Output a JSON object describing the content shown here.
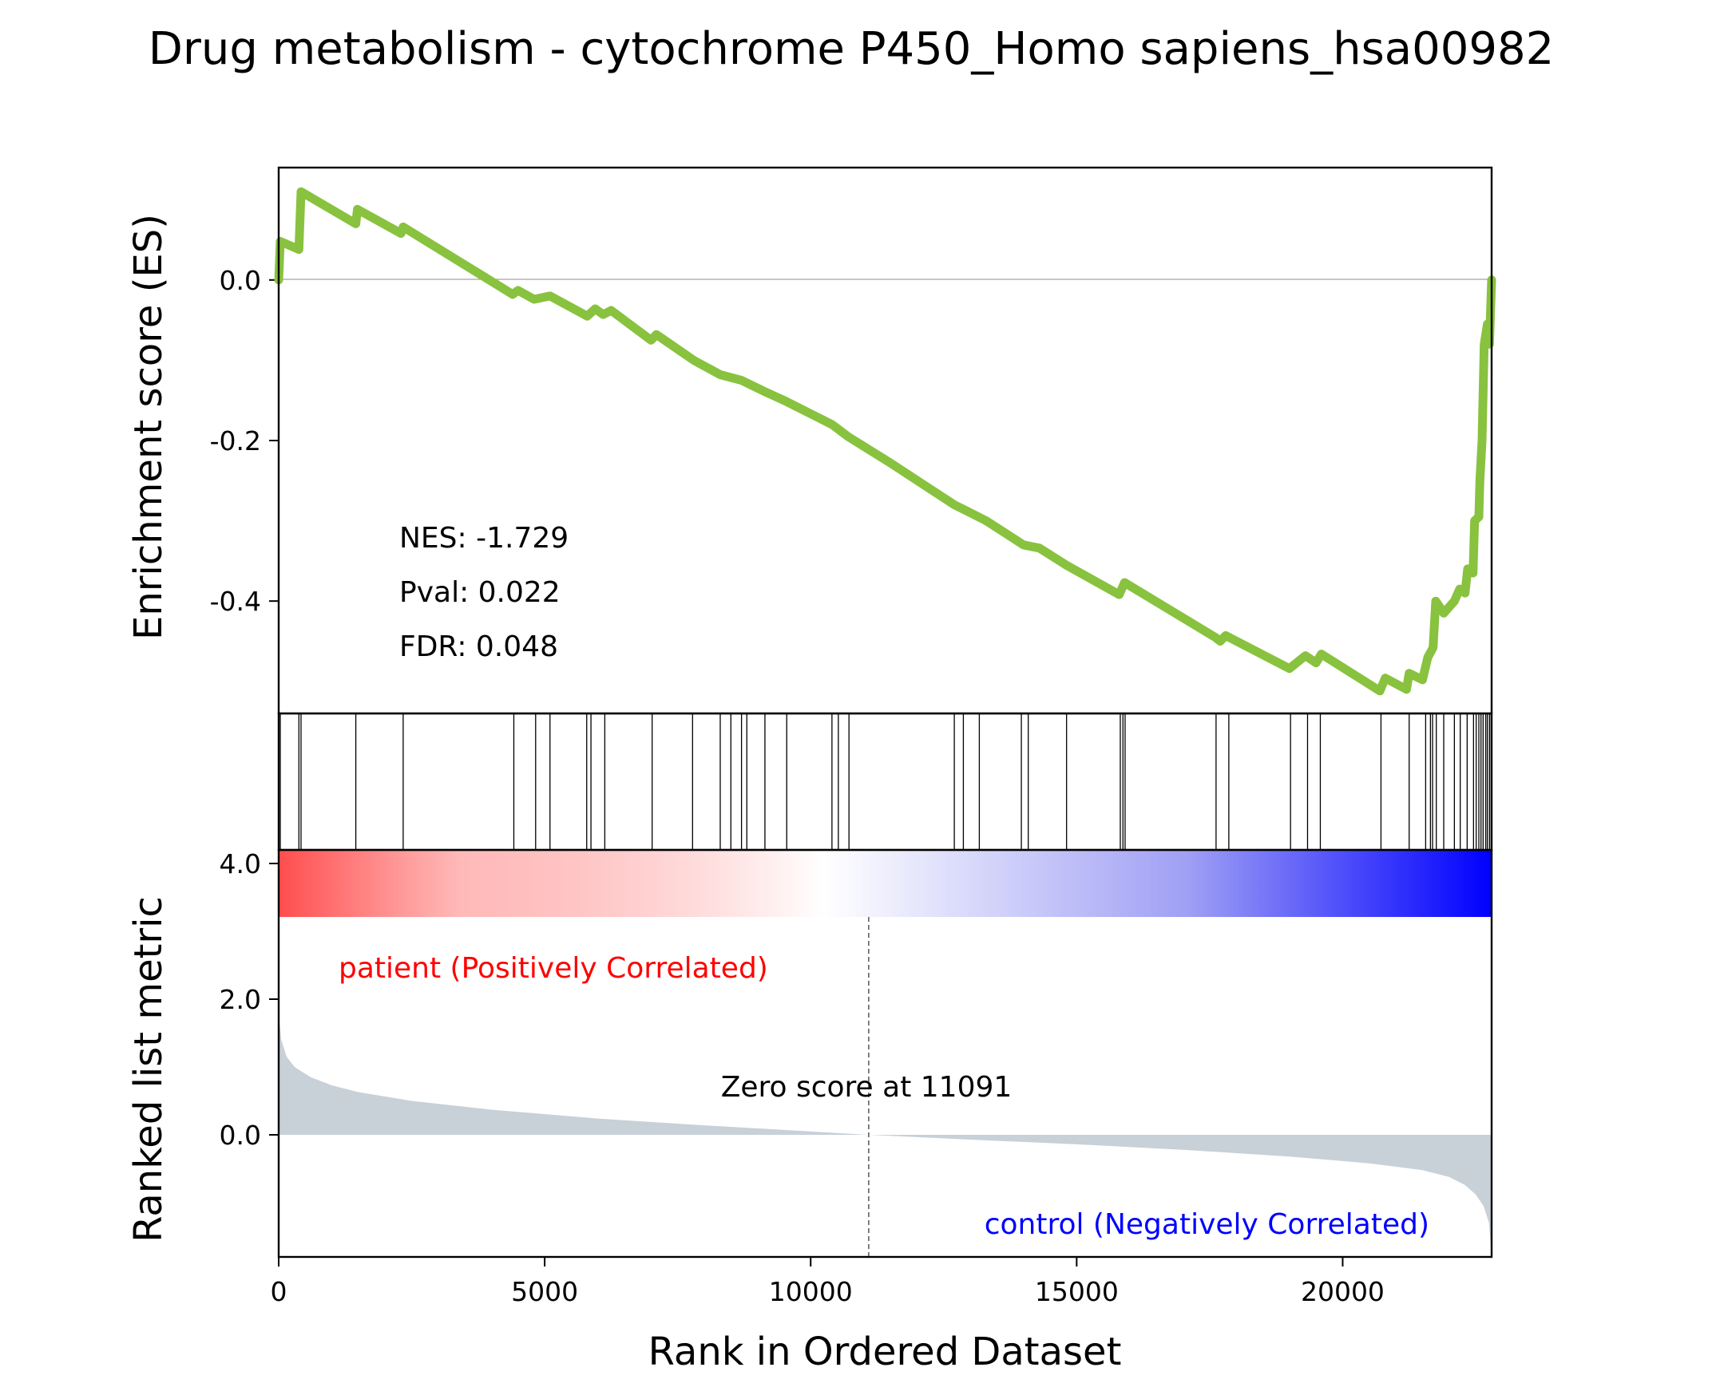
{
  "chart_data": {
    "type": "line",
    "title": "Drug metabolism - cytochrome P450_Homo sapiens_hsa00982",
    "xlabel": "Rank in Ordered Dataset",
    "xlim": [
      0,
      22800
    ],
    "xticks": [
      0,
      5000,
      10000,
      15000,
      20000
    ],
    "enrichment": {
      "ylabel": "Enrichment score (ES)",
      "ylim": [
        -0.54,
        0.14
      ],
      "yticks": [
        0.0,
        -0.2,
        -0.4
      ],
      "ytick_labels": [
        "0.0",
        "-0.2",
        "-0.4"
      ],
      "line_color": "#88c23f",
      "points": [
        [
          0,
          0.0
        ],
        [
          30,
          0.048
        ],
        [
          380,
          0.038
        ],
        [
          420,
          0.11
        ],
        [
          1450,
          0.07
        ],
        [
          1480,
          0.088
        ],
        [
          2300,
          0.058
        ],
        [
          2340,
          0.066
        ],
        [
          4400,
          -0.018
        ],
        [
          4500,
          -0.013
        ],
        [
          4800,
          -0.024
        ],
        [
          5100,
          -0.02
        ],
        [
          5800,
          -0.045
        ],
        [
          5950,
          -0.036
        ],
        [
          6100,
          -0.043
        ],
        [
          6250,
          -0.038
        ],
        [
          7000,
          -0.075
        ],
        [
          7100,
          -0.068
        ],
        [
          7800,
          -0.1
        ],
        [
          8300,
          -0.118
        ],
        [
          8700,
          -0.125
        ],
        [
          9100,
          -0.138
        ],
        [
          9500,
          -0.15
        ],
        [
          10400,
          -0.18
        ],
        [
          10700,
          -0.195
        ],
        [
          11500,
          -0.228
        ],
        [
          12700,
          -0.28
        ],
        [
          13000,
          -0.29
        ],
        [
          13300,
          -0.3
        ],
        [
          14000,
          -0.33
        ],
        [
          14300,
          -0.334
        ],
        [
          14800,
          -0.355
        ],
        [
          15800,
          -0.392
        ],
        [
          15900,
          -0.377
        ],
        [
          17600,
          -0.445
        ],
        [
          17700,
          -0.45
        ],
        [
          17800,
          -0.443
        ],
        [
          19000,
          -0.484
        ],
        [
          19300,
          -0.468
        ],
        [
          19500,
          -0.477
        ],
        [
          19600,
          -0.466
        ],
        [
          20700,
          -0.512
        ],
        [
          20800,
          -0.496
        ],
        [
          21200,
          -0.51
        ],
        [
          21250,
          -0.49
        ],
        [
          21500,
          -0.498
        ],
        [
          21600,
          -0.47
        ],
        [
          21700,
          -0.458
        ],
        [
          21750,
          -0.4
        ],
        [
          21900,
          -0.415
        ],
        [
          22100,
          -0.4
        ],
        [
          22200,
          -0.385
        ],
        [
          22300,
          -0.39
        ],
        [
          22350,
          -0.36
        ],
        [
          22450,
          -0.365
        ],
        [
          22480,
          -0.3
        ],
        [
          22560,
          -0.295
        ],
        [
          22580,
          -0.25
        ],
        [
          22620,
          -0.2
        ],
        [
          22660,
          -0.08
        ],
        [
          22720,
          -0.055
        ],
        [
          22760,
          -0.08
        ],
        [
          22790,
          -0.02
        ],
        [
          22800,
          0.0
        ]
      ]
    },
    "hits": {
      "positions": [
        30,
        380,
        420,
        1450,
        2340,
        4420,
        4830,
        5100,
        5790,
        5870,
        6130,
        7020,
        7780,
        8300,
        8500,
        8700,
        8800,
        9140,
        9550,
        10400,
        10520,
        10720,
        12700,
        12870,
        13170,
        13960,
        14090,
        14810,
        15820,
        15870,
        15910,
        17620,
        17860,
        19020,
        19340,
        19580,
        20720,
        21250,
        21560,
        21650,
        21690,
        21760,
        21900,
        22100,
        22210,
        22340,
        22460,
        22510,
        22560,
        22600,
        22640,
        22690,
        22720,
        22760,
        22790
      ],
      "line_color": "#000000"
    },
    "ranked_metric": {
      "ylabel": "Ranked list metric",
      "ylim": [
        -1.8,
        4.2
      ],
      "yticks": [
        0.0,
        2.0,
        4.0
      ],
      "ytick_labels": [
        "0.0",
        "2.0",
        "4.0"
      ],
      "fill_color": "#c8d0d8",
      "points": [
        [
          0,
          1.8
        ],
        [
          50,
          1.4
        ],
        [
          150,
          1.15
        ],
        [
          300,
          1.0
        ],
        [
          600,
          0.85
        ],
        [
          1000,
          0.73
        ],
        [
          1500,
          0.63
        ],
        [
          2500,
          0.5
        ],
        [
          4000,
          0.37
        ],
        [
          6000,
          0.24
        ],
        [
          8000,
          0.14
        ],
        [
          10000,
          0.05
        ],
        [
          11091,
          0.0
        ],
        [
          13000,
          -0.07
        ],
        [
          15000,
          -0.14
        ],
        [
          17000,
          -0.22
        ],
        [
          19000,
          -0.32
        ],
        [
          20500,
          -0.42
        ],
        [
          21500,
          -0.52
        ],
        [
          22000,
          -0.62
        ],
        [
          22300,
          -0.74
        ],
        [
          22500,
          -0.88
        ],
        [
          22650,
          -1.05
        ],
        [
          22750,
          -1.3
        ],
        [
          22800,
          -1.8
        ]
      ],
      "zero_score_rank": 11091,
      "zero_score_label": "Zero score at 11091",
      "positive_label": "patient (Positively Correlated)",
      "positive_color": "#ff0000",
      "negative_label": "control (Negatively Correlated)",
      "negative_color": "#0000ff"
    },
    "colorbar": {
      "from_color": "#ff0000",
      "mid_color": "#ffffff",
      "to_color": "#0000ff"
    },
    "stats": {
      "nes": "NES: -1.729",
      "pval": "Pval: 0.022",
      "fdr": "FDR: 0.048"
    }
  }
}
